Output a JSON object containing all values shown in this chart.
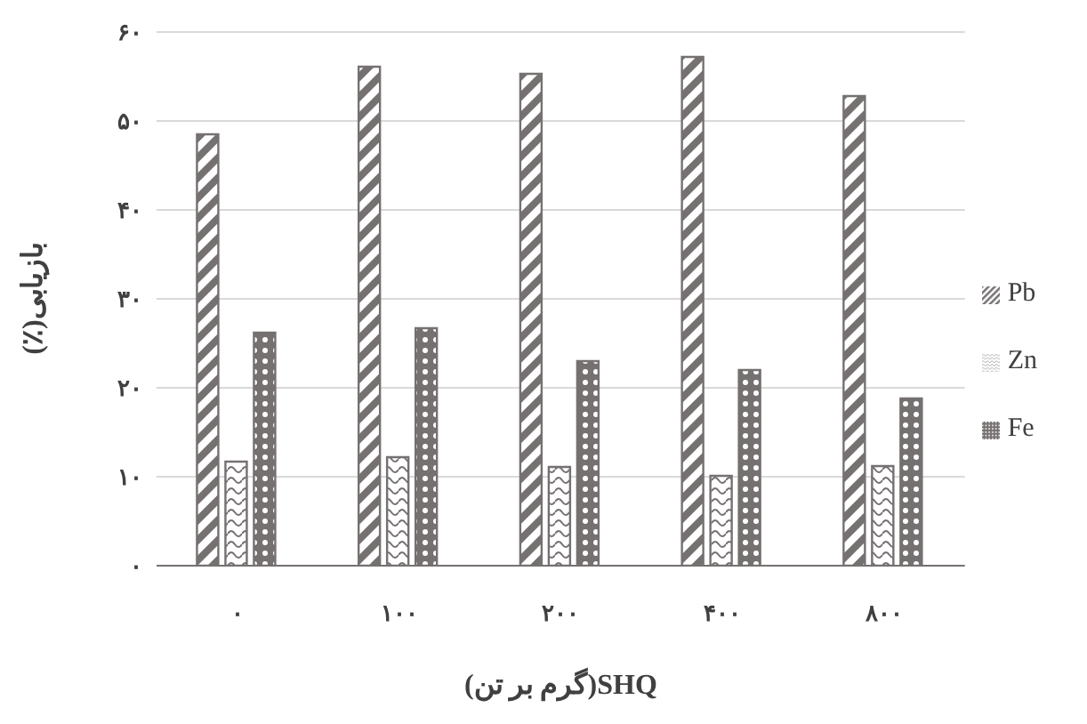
{
  "chart_data": {
    "type": "bar",
    "xlabel": "SHQ(گرم بر تن)",
    "ylabel": "بازیابی(٪)",
    "categories": [
      "۰",
      "۱۰۰",
      "۲۰۰",
      "۴۰۰",
      "۸۰۰"
    ],
    "series": [
      {
        "name": "Pb",
        "color": "#767171",
        "values": [
          48.5,
          56.1,
          55.3,
          57.2,
          52.8
        ]
      },
      {
        "name": "Zn",
        "color": "#767171",
        "values": [
          11.7,
          12.2,
          11.1,
          10.1,
          11.2
        ]
      },
      {
        "name": "Fe",
        "color": "#767171",
        "values": [
          26.2,
          26.7,
          23.0,
          22.0,
          18.8
        ]
      }
    ],
    "ylim": [
      0,
      60
    ],
    "yticks": [
      {
        "value": 0,
        "label": "۰"
      },
      {
        "value": 10,
        "label": "۱۰"
      },
      {
        "value": 20,
        "label": "۲۰"
      },
      {
        "value": 30,
        "label": "۳۰"
      },
      {
        "value": 40,
        "label": "۴۰"
      },
      {
        "value": 50,
        "label": "۵۰"
      },
      {
        "value": 60,
        "label": "۶۰"
      }
    ],
    "grid": "y",
    "legend": "right"
  }
}
